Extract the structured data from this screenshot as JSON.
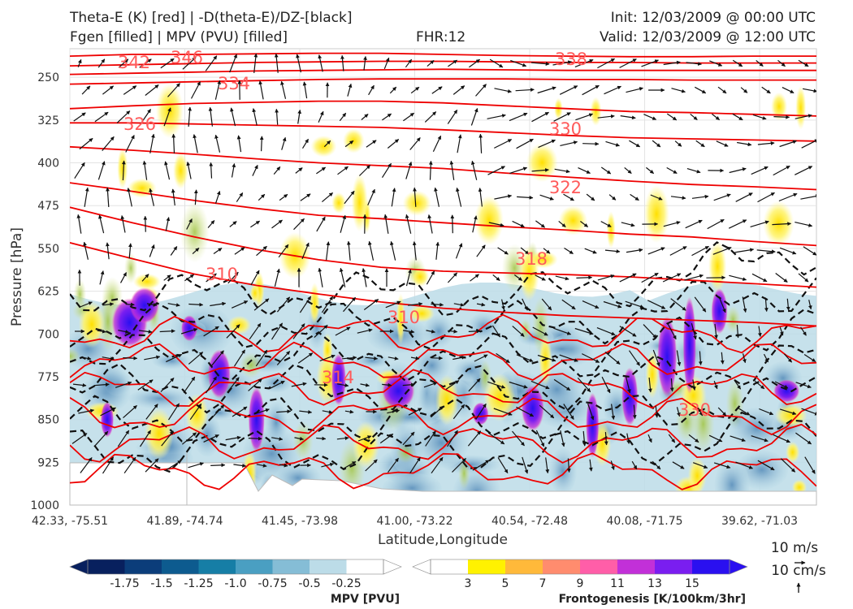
{
  "header": {
    "title_line1": "Theta-E (K) [red] | -D(theta-E)/DZ-[black]",
    "title_line2": "Fgen [filled] | MPV (PVU) [filled]",
    "fhr": "FHR:12",
    "init": "Init: 12/03/2009 @ 00:00 UTC",
    "valid": "Valid: 12/03/2009 @ 12:00 UTC"
  },
  "chart_data": {
    "type": "cross-section",
    "xlabel": "Latitude,Longitude",
    "ylabel": "Pressure [hPa]",
    "x_ticks": [
      "42.33, -75.51",
      "41.89, -74.74",
      "41.45, -73.98",
      "41.00, -73.22",
      "40.54, -72.48",
      "40.08, -71.75",
      "39.62, -71.03"
    ],
    "y_ticks": [
      250,
      325,
      400,
      475,
      550,
      625,
      700,
      775,
      850,
      925,
      1000
    ],
    "ylim": [
      1000,
      200
    ],
    "grid": true,
    "theta_e_contours": [
      {
        "level": 346,
        "label": "346",
        "y": [
          213,
          210,
          210,
          209,
          208,
          208,
          210,
          212,
          213,
          214,
          214,
          213,
          213
        ]
      },
      {
        "level": 342,
        "label": "342",
        "y": [
          230,
          228,
          226,
          224,
          223,
          222,
          222,
          223,
          224,
          224,
          225,
          225,
          225
        ]
      },
      {
        "level": 338,
        "label": "338",
        "y": [
          245,
          243,
          241,
          239,
          238,
          237,
          236,
          237,
          238,
          238,
          238,
          238,
          238
        ]
      },
      {
        "level": 334,
        "label": "334",
        "y": [
          262,
          260,
          258,
          256,
          254,
          253,
          253,
          253,
          254,
          254,
          255,
          255,
          255
        ]
      },
      {
        "level": 330,
        "label": "330",
        "y": [
          305,
          300,
          296,
          294,
          292,
          292,
          295,
          300,
          305,
          310,
          312,
          315,
          318
        ]
      },
      {
        "level": 326,
        "label": "326",
        "y": [
          330,
          330,
          332,
          334,
          336,
          338,
          342,
          347,
          352,
          356,
          358,
          360,
          362
        ]
      },
      {
        "level": 322,
        "label": "322",
        "y": [
          372,
          378,
          385,
          393,
          400,
          405,
          410,
          418,
          425,
          432,
          438,
          442,
          447
        ]
      },
      {
        "level": 318,
        "label": "318",
        "y": [
          435,
          450,
          466,
          480,
          492,
          498,
          505,
          512,
          518,
          525,
          530,
          538,
          545
        ]
      },
      {
        "level": 314,
        "label": "314",
        "y": [
          478,
          505,
          530,
          552,
          570,
          583,
          590,
          593,
          596,
          600,
          606,
          612,
          618
        ]
      },
      {
        "level": 310,
        "label": "310",
        "y": [
          540,
          568,
          595,
          615,
          630,
          644,
          655,
          662,
          668,
          672,
          676,
          680,
          686
        ]
      }
    ],
    "contour_labels_shown": [
      "342",
      "346",
      "334",
      "326",
      "338",
      "330",
      "322",
      "318",
      "310",
      "310",
      "314",
      "330"
    ],
    "mpv_colorbar": {
      "title": "MPV [PVU]",
      "ticks": [
        "-1.75",
        "-1.5",
        "-1.25",
        "-1.0",
        "-0.75",
        "-0.5",
        "-0.25"
      ],
      "colors": [
        "#08205e",
        "#0b3d7a",
        "#0d5b8f",
        "#167ea6",
        "#4a9fc2",
        "#85bdd6",
        "#bcdce8",
        "#ffffff"
      ]
    },
    "fgen_colorbar": {
      "title": "Frontogenesis [K/100km/3hr]",
      "ticks": [
        "3",
        "5",
        "7",
        "9",
        "11",
        "13",
        "15"
      ],
      "colors": [
        "#ffffff",
        "#fff200",
        "#ffb93a",
        "#ff8c6e",
        "#ff5ea8",
        "#c230d8",
        "#7a1ef0",
        "#2a10f0"
      ]
    },
    "wind_reference": {
      "horizontal": "10 m/s",
      "vertical": "10 cm/s"
    }
  }
}
